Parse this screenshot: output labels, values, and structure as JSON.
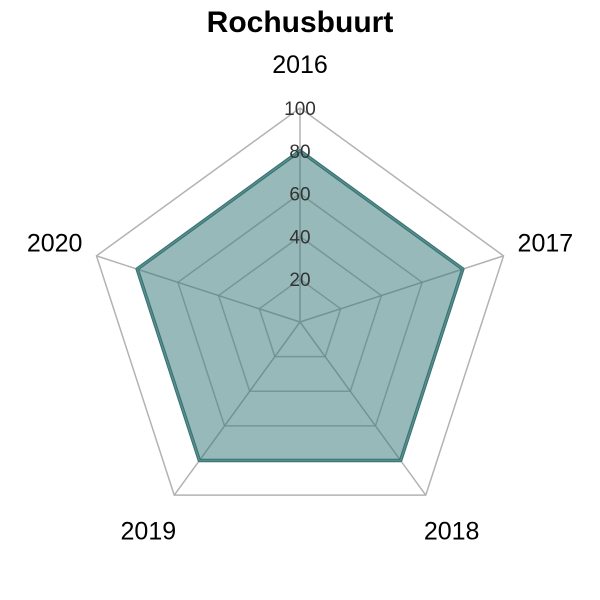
{
  "chart_data": {
    "type": "radar",
    "title": "Rochusbuurt",
    "axes": [
      "2016",
      "2017",
      "2018",
      "2019",
      "2020"
    ],
    "series": [
      {
        "values": [
          80,
          80,
          80,
          80,
          80
        ]
      }
    ],
    "rlim": [
      0,
      100
    ],
    "ticks": [
      20,
      40,
      60,
      80,
      100
    ],
    "tick_labels": [
      "20",
      "40",
      "60",
      "80",
      "100"
    ],
    "grid": true,
    "colors": {
      "fill": "#2f7474",
      "line": "#2f7474",
      "grid_outer": "#b3b3b3",
      "grid_inner": "#6e8e8e"
    }
  }
}
